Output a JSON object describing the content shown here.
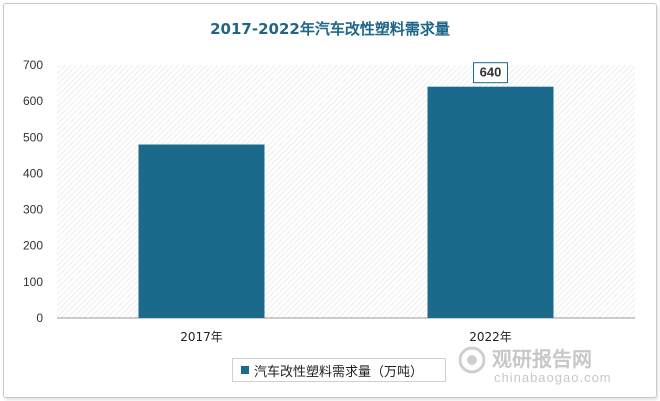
{
  "chart_data": {
    "type": "bar",
    "title": "2017-2022年汽车改性塑料需求量",
    "categories": [
      "2017年",
      "2022年"
    ],
    "series": [
      {
        "name": "汽车改性塑料需求量（万吨）",
        "values": [
          480,
          640
        ],
        "color": "#1b6a8c"
      }
    ],
    "data_labels": {
      "2022年": "640"
    },
    "ylim": [
      0,
      700
    ],
    "yticks": [
      "0",
      "100",
      "200",
      "300",
      "400",
      "500",
      "600",
      "700"
    ],
    "grid": false,
    "legend_position": "bottom"
  },
  "watermark": {
    "name": "观研报告网",
    "url": "chinabaogao.com"
  }
}
